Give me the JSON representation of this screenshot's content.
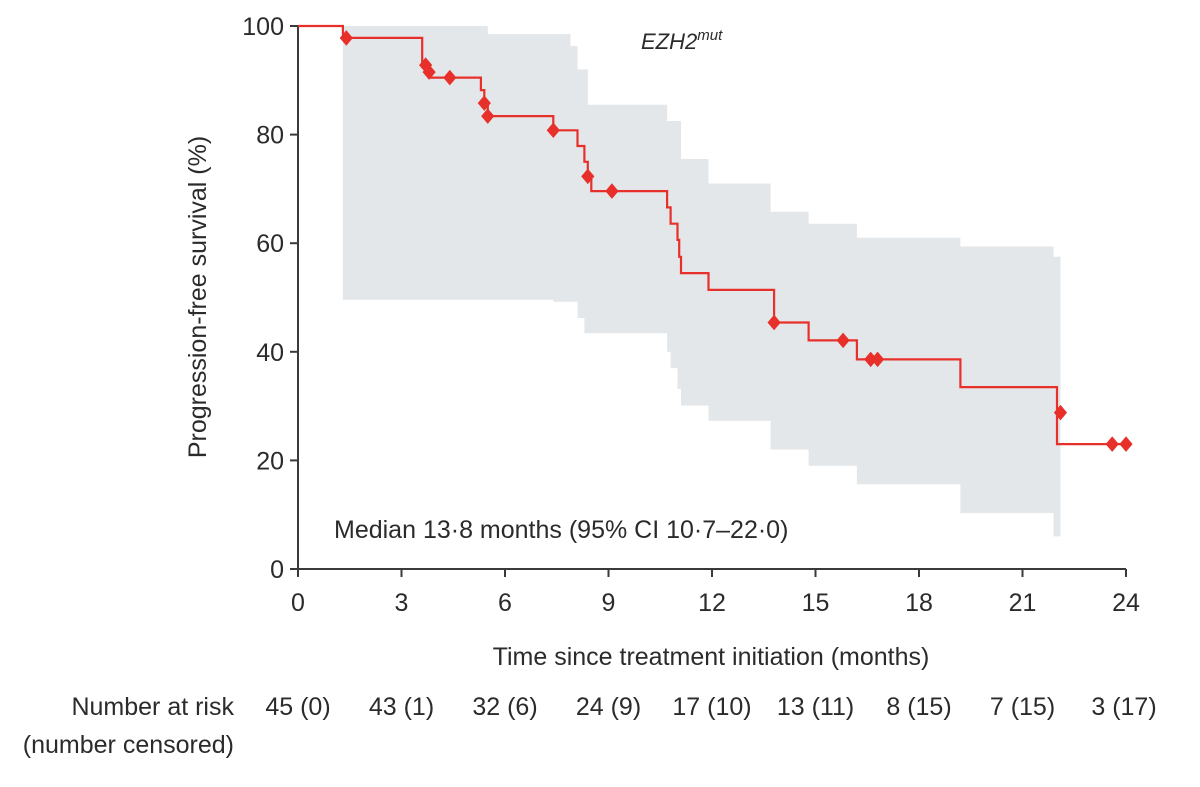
{
  "chart_data": {
    "type": "line",
    "title": "EZH2",
    "title_superscript": "mut",
    "xlabel": "Time since treatment initiation (months)",
    "ylabel": "Progression-free survival (%)",
    "xlim": [
      0,
      24
    ],
    "ylim": [
      0,
      100
    ],
    "x_ticks": [
      0,
      3,
      6,
      9,
      12,
      15,
      18,
      21,
      24
    ],
    "y_ticks": [
      0,
      20,
      40,
      60,
      80,
      100
    ],
    "grid": false,
    "colors": {
      "curve": "#e8302a",
      "ci_band": "#e3e7ea",
      "axis": "#3a3a3a"
    },
    "annotation": "Median 13·8 months (95% CI 10·7–22·0)",
    "series": [
      {
        "name": "EZH2mut",
        "survival_step": [
          [
            0,
            100
          ],
          [
            1.3,
            100
          ],
          [
            1.3,
            97.8
          ],
          [
            3.6,
            97.8
          ],
          [
            3.6,
            92.8
          ],
          [
            3.8,
            92.8
          ],
          [
            3.8,
            90.5
          ],
          [
            5.3,
            90.5
          ],
          [
            5.3,
            88.2
          ],
          [
            5.4,
            88.2
          ],
          [
            5.4,
            85.8
          ],
          [
            5.5,
            85.8
          ],
          [
            5.5,
            83.4
          ],
          [
            7.4,
            83.4
          ],
          [
            7.4,
            80.8
          ],
          [
            8.1,
            80.8
          ],
          [
            8.1,
            77.9
          ],
          [
            8.3,
            77.9
          ],
          [
            8.3,
            75.0
          ],
          [
            8.4,
            75.0
          ],
          [
            8.4,
            72.3
          ],
          [
            8.5,
            72.3
          ],
          [
            8.5,
            69.6
          ],
          [
            10.7,
            69.6
          ],
          [
            10.7,
            66.6
          ],
          [
            10.8,
            66.6
          ],
          [
            10.8,
            63.6
          ],
          [
            11.0,
            63.6
          ],
          [
            11.0,
            60.6
          ],
          [
            11.05,
            60.6
          ],
          [
            11.05,
            57.5
          ],
          [
            11.1,
            57.5
          ],
          [
            11.1,
            54.5
          ],
          [
            11.9,
            54.5
          ],
          [
            11.9,
            51.4
          ],
          [
            13.8,
            51.4
          ],
          [
            13.8,
            45.4
          ],
          [
            14.8,
            45.4
          ],
          [
            14.8,
            42.1
          ],
          [
            16.2,
            42.1
          ],
          [
            16.2,
            38.6
          ],
          [
            19.2,
            38.6
          ],
          [
            19.2,
            33.5
          ],
          [
            22.0,
            33.5
          ],
          [
            22.0,
            23.0
          ],
          [
            24.0,
            23.0
          ]
        ],
        "ci_upper_step": [
          [
            1.3,
            100
          ],
          [
            5.5,
            100
          ],
          [
            5.5,
            98.5
          ],
          [
            7.9,
            98.5
          ],
          [
            7.9,
            96.3
          ],
          [
            8.1,
            96.3
          ],
          [
            8.1,
            92.0
          ],
          [
            8.4,
            92.0
          ],
          [
            8.4,
            85.5
          ],
          [
            10.7,
            85.5
          ],
          [
            10.7,
            82.5
          ],
          [
            11.1,
            82.5
          ],
          [
            11.1,
            75.5
          ],
          [
            11.9,
            75.5
          ],
          [
            11.9,
            71.0
          ],
          [
            13.7,
            71.0
          ],
          [
            13.7,
            65.8
          ],
          [
            14.8,
            65.8
          ],
          [
            14.8,
            63.6
          ],
          [
            16.2,
            63.6
          ],
          [
            16.2,
            61.0
          ],
          [
            19.2,
            61.0
          ],
          [
            19.2,
            59.4
          ],
          [
            21.9,
            59.4
          ],
          [
            21.9,
            57.5
          ],
          [
            22.1,
            57.5
          ],
          [
            22.1,
            2
          ]
        ],
        "ci_lower_step": [
          [
            1.3,
            49.6
          ],
          [
            7.4,
            49.6
          ],
          [
            7.4,
            49.2
          ],
          [
            8.1,
            49.2
          ],
          [
            8.1,
            46.2
          ],
          [
            8.3,
            46.2
          ],
          [
            8.3,
            43.4
          ],
          [
            10.7,
            43.4
          ],
          [
            10.7,
            40.0
          ],
          [
            10.8,
            40.0
          ],
          [
            10.8,
            37.0
          ],
          [
            11.0,
            37.0
          ],
          [
            11.0,
            33.2
          ],
          [
            11.1,
            33.2
          ],
          [
            11.1,
            30.1
          ],
          [
            11.9,
            30.1
          ],
          [
            11.9,
            27.3
          ],
          [
            13.7,
            27.3
          ],
          [
            13.7,
            22.0
          ],
          [
            14.8,
            22.0
          ],
          [
            14.8,
            19.0
          ],
          [
            16.2,
            19.0
          ],
          [
            16.2,
            15.6
          ],
          [
            19.2,
            15.6
          ],
          [
            19.2,
            10.3
          ],
          [
            21.9,
            10.3
          ],
          [
            21.9,
            6.0
          ],
          [
            22.1,
            6.0
          ],
          [
            22.1,
            2
          ]
        ],
        "censored": [
          [
            1.4,
            97.8
          ],
          [
            3.7,
            92.8
          ],
          [
            3.8,
            91.5
          ],
          [
            4.4,
            90.5
          ],
          [
            5.4,
            85.8
          ],
          [
            5.5,
            83.4
          ],
          [
            7.4,
            80.8
          ],
          [
            8.4,
            72.3
          ],
          [
            9.1,
            69.6
          ],
          [
            13.8,
            45.4
          ],
          [
            15.8,
            42.1
          ],
          [
            16.6,
            38.6
          ],
          [
            16.8,
            38.6
          ],
          [
            22.1,
            28.8
          ],
          [
            23.6,
            23.0
          ],
          [
            24.0,
            23.0
          ]
        ]
      }
    ],
    "risk_table": {
      "label_line1": "Number at risk",
      "label_line2": "(number censored)",
      "times": [
        0,
        3,
        6,
        9,
        12,
        15,
        18,
        21,
        24
      ],
      "values": [
        "45 (0)",
        "43 (1)",
        "32 (6)",
        "24 (9)",
        "17 (10)",
        "13 (11)",
        "8 (15)",
        "7 (15)",
        "3 (17)"
      ]
    }
  }
}
